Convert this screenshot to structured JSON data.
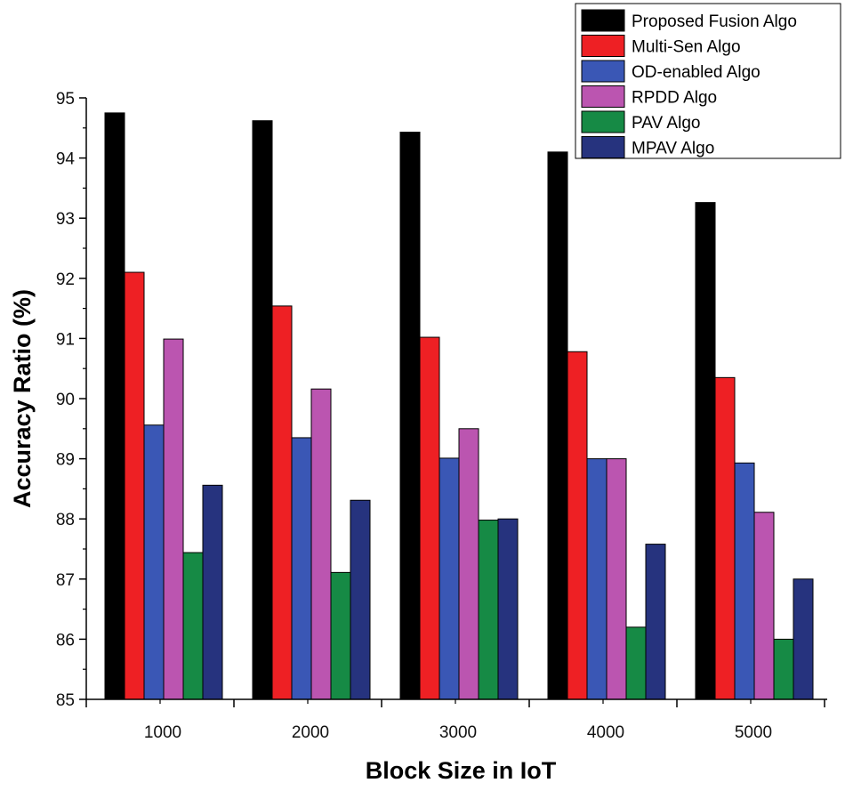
{
  "chart_data": {
    "type": "bar",
    "title": "",
    "xlabel": "Block Size in IoT",
    "ylabel": "Accuracy Ratio (%)",
    "ylim": [
      85,
      95
    ],
    "yticks": [
      "85",
      "86",
      "87",
      "88",
      "89",
      "90",
      "91",
      "92",
      "93",
      "94",
      "95"
    ],
    "categories": [
      "1000",
      "2000",
      "3000",
      "4000",
      "5000"
    ],
    "legend_position": "top-right",
    "grid": false,
    "series": [
      {
        "name": "Proposed Fusion Algo",
        "color": "#000000",
        "values": [
          94.75,
          94.62,
          94.43,
          94.1,
          93.26
        ]
      },
      {
        "name": "Multi-Sen Algo",
        "color": "#ee2024",
        "values": [
          92.1,
          91.54,
          91.02,
          90.78,
          90.35
        ]
      },
      {
        "name": "OD-enabled Algo",
        "color": "#3a57b5",
        "values": [
          89.56,
          89.35,
          89.01,
          89.0,
          88.93
        ]
      },
      {
        "name": "RPDD Algo",
        "color": "#bb55b0",
        "values": [
          90.99,
          90.16,
          89.5,
          89.0,
          88.11
        ]
      },
      {
        "name": "PAV Algo",
        "color": "#168a45",
        "values": [
          87.44,
          87.11,
          87.98,
          86.2,
          86.0
        ]
      },
      {
        "name": "MPAV Algo",
        "color": "#26337e",
        "values": [
          88.56,
          88.31,
          88.0,
          87.58,
          87.0
        ]
      }
    ]
  }
}
